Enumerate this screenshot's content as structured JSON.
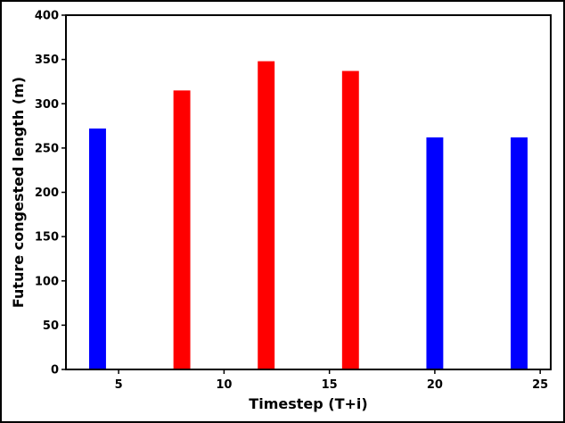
{
  "chart_data": {
    "type": "bar",
    "title": "",
    "xlabel": "Timestep (T+i)",
    "ylabel": "Future congested length (m)",
    "xlim": [
      2.5,
      25.5
    ],
    "ylim": [
      0,
      400
    ],
    "xticks": [
      5,
      10,
      15,
      20,
      25
    ],
    "yticks": [
      0,
      50,
      100,
      150,
      200,
      250,
      300,
      350,
      400
    ],
    "bar_width": 0.8,
    "bars": [
      {
        "x": 4,
        "value": 272,
        "color": "#0000ff"
      },
      {
        "x": 8,
        "value": 315,
        "color": "#ff0000"
      },
      {
        "x": 12,
        "value": 348,
        "color": "#ff0000"
      },
      {
        "x": 16,
        "value": 337,
        "color": "#ff0000"
      },
      {
        "x": 20,
        "value": 262,
        "color": "#0000ff"
      },
      {
        "x": 24,
        "value": 262,
        "color": "#0000ff"
      }
    ],
    "grid": false,
    "legend": "none"
  }
}
